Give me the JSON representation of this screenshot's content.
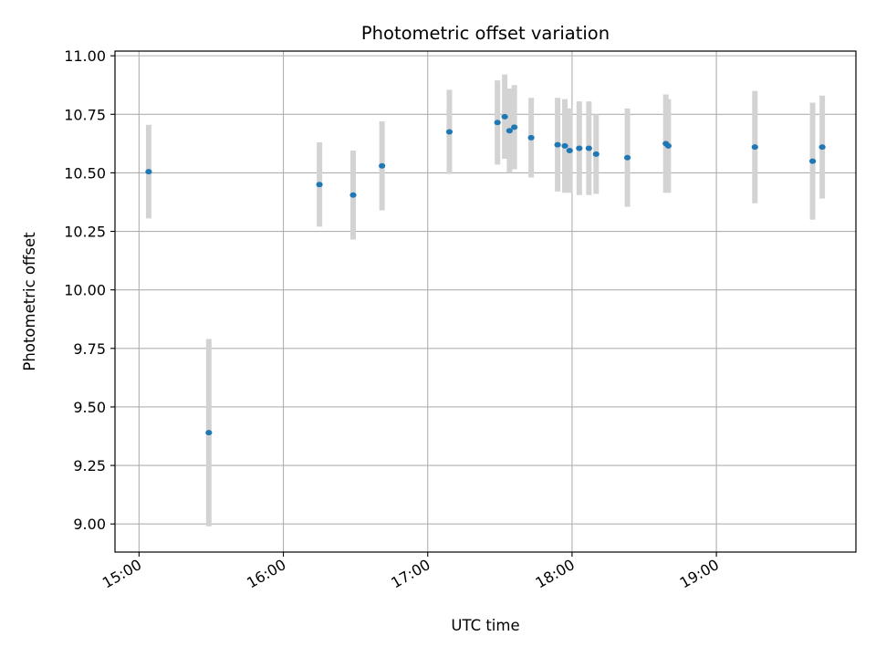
{
  "chart_data": {
    "type": "scatter",
    "title": "Photometric offset variation",
    "xlabel": "UTC time",
    "ylabel": "Photometric offset",
    "x_unit": "hours UTC",
    "xlim": [
      "14:50",
      "19:58"
    ],
    "ylim": [
      8.88,
      11.02
    ],
    "x_ticks": [
      "15:00",
      "16:00",
      "17:00",
      "18:00",
      "19:00"
    ],
    "y_ticks": [
      "9.00",
      "9.25",
      "9.50",
      "9.75",
      "10.00",
      "10.25",
      "10.50",
      "10.75",
      "11.00"
    ],
    "grid": true,
    "point_color": "#1f77b4",
    "errorbar_color": "#d3d3d3",
    "points": [
      {
        "x": "15:04",
        "y": 10.505,
        "err": 0.2
      },
      {
        "x": "15:29",
        "y": 9.39,
        "err": 0.4
      },
      {
        "x": "16:15",
        "y": 10.45,
        "err": 0.18
      },
      {
        "x": "16:29",
        "y": 10.405,
        "err": 0.19
      },
      {
        "x": "16:41",
        "y": 10.53,
        "err": 0.19
      },
      {
        "x": "17:09",
        "y": 10.675,
        "err": 0.18
      },
      {
        "x": "17:29",
        "y": 10.715,
        "err": 0.18
      },
      {
        "x": "17:32",
        "y": 10.74,
        "err": 0.18
      },
      {
        "x": "17:34",
        "y": 10.68,
        "err": 0.18
      },
      {
        "x": "17:36",
        "y": 10.695,
        "err": 0.18
      },
      {
        "x": "17:43",
        "y": 10.65,
        "err": 0.17
      },
      {
        "x": "17:54",
        "y": 10.62,
        "err": 0.2
      },
      {
        "x": "17:57",
        "y": 10.615,
        "err": 0.2
      },
      {
        "x": "17:59",
        "y": 10.595,
        "err": 0.18
      },
      {
        "x": "18:03",
        "y": 10.605,
        "err": 0.2
      },
      {
        "x": "18:07",
        "y": 10.605,
        "err": 0.2
      },
      {
        "x": "18:10",
        "y": 10.58,
        "err": 0.17
      },
      {
        "x": "18:23",
        "y": 10.565,
        "err": 0.21
      },
      {
        "x": "18:39",
        "y": 10.625,
        "err": 0.21
      },
      {
        "x": "18:40",
        "y": 10.615,
        "err": 0.2
      },
      {
        "x": "19:16",
        "y": 10.61,
        "err": 0.24
      },
      {
        "x": "19:40",
        "y": 10.55,
        "err": 0.25
      },
      {
        "x": "19:44",
        "y": 10.61,
        "err": 0.22
      }
    ]
  }
}
